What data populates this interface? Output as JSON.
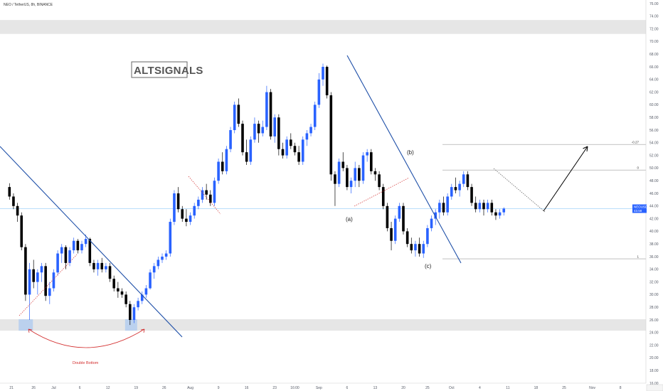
{
  "header": {
    "symbol_line": "NEO / TetherUS, 8h, BINANCE"
  },
  "watermark": "ALTSIGNALS",
  "chart_data": {
    "type": "candlestick",
    "symbol": "NEO / TetherUS",
    "timeframe": "8h",
    "exchange": "BINANCE",
    "ylim": [
      15,
      77
    ],
    "y_ticks": [
      "16.00",
      "18.00",
      "20.00",
      "22.00",
      "24.00",
      "26.00",
      "28.00",
      "30.00",
      "32.00",
      "34.00",
      "36.00",
      "38.00",
      "40.00",
      "42.00",
      "44.00",
      "46.00",
      "48.00",
      "50.00",
      "52.00",
      "54.00",
      "56.00",
      "58.00",
      "60.00",
      "62.00",
      "64.00",
      "66.00",
      "68.00",
      "70.00",
      "72.00",
      "74.00",
      "76.00"
    ],
    "x_ticks": [
      "21",
      "26",
      "Jul",
      "6",
      "12",
      "19",
      "26",
      "Aug",
      "9",
      "16",
      "23",
      "16:00",
      "Sep",
      "6",
      "13",
      "20",
      "25",
      "Oct",
      "4",
      "11",
      "18",
      "25",
      "Nov",
      "8"
    ],
    "x_tick_positions": [
      0.5,
      6,
      11,
      17.5,
      24.5,
      31.5,
      38.5,
      45,
      52,
      59,
      66,
      71,
      77,
      84,
      91,
      98,
      104,
      110,
      117,
      124,
      131,
      138,
      145,
      152
    ],
    "x_range": [
      -2,
      158
    ],
    "ohlc": [
      [
        0,
        47.0,
        47.6,
        45.0,
        45.5
      ],
      [
        1,
        45.5,
        46.0,
        43.5,
        44.0
      ],
      [
        2,
        44.0,
        44.5,
        41.5,
        42.5
      ],
      [
        3,
        42.5,
        43.0,
        37.0,
        37.5
      ],
      [
        4,
        37.5,
        38.0,
        29.0,
        30.0
      ],
      [
        5,
        30.0,
        35.0,
        26.0,
        34.0
      ],
      [
        6,
        34.0,
        35.5,
        31.0,
        32.0
      ],
      [
        7,
        32.0,
        34.0,
        30.0,
        33.5
      ],
      [
        8,
        33.5,
        35.0,
        32.0,
        34.5
      ],
      [
        9,
        34.5,
        35.0,
        29.0,
        29.8
      ],
      [
        10,
        29.8,
        32.0,
        28.5,
        31.0
      ],
      [
        11,
        31.0,
        34.0,
        30.5,
        33.5
      ],
      [
        12,
        33.5,
        37.0,
        33.0,
        36.5
      ],
      [
        13,
        36.5,
        38.0,
        35.0,
        37.5
      ],
      [
        14,
        37.5,
        37.8,
        34.0,
        35.0
      ],
      [
        15,
        35.0,
        37.5,
        34.5,
        37.0
      ],
      [
        16,
        37.0,
        39.0,
        36.5,
        38.5
      ],
      [
        17,
        38.5,
        38.8,
        36.5,
        37.0
      ],
      [
        18,
        37.0,
        38.5,
        36.5,
        38.0
      ],
      [
        19,
        38.0,
        39.5,
        37.5,
        38.8
      ],
      [
        20,
        38.8,
        39.0,
        34.5,
        35.0
      ],
      [
        21,
        35.0,
        35.5,
        33.5,
        34.0
      ],
      [
        22,
        34.0,
        35.5,
        33.0,
        35.0
      ],
      [
        23,
        35.0,
        35.8,
        33.5,
        34.0
      ],
      [
        24,
        34.0,
        35.0,
        33.5,
        34.5
      ],
      [
        25,
        34.5,
        35.0,
        32.0,
        32.5
      ],
      [
        26,
        32.5,
        33.0,
        30.5,
        31.0
      ],
      [
        27,
        31.0,
        32.0,
        29.5,
        30.5
      ],
      [
        28,
        30.5,
        31.0,
        29.5,
        30.0
      ],
      [
        29,
        30.0,
        30.5,
        28.0,
        28.5
      ],
      [
        30,
        28.5,
        29.0,
        25.2,
        26.0
      ],
      [
        31,
        26.0,
        28.5,
        25.5,
        28.0
      ],
      [
        32,
        28.0,
        29.5,
        27.5,
        29.0
      ],
      [
        33,
        29.0,
        30.5,
        28.5,
        30.0
      ],
      [
        34,
        30.0,
        31.5,
        29.5,
        31.0
      ],
      [
        35,
        31.0,
        34.0,
        30.8,
        33.5
      ],
      [
        36,
        33.5,
        35.0,
        32.5,
        34.5
      ],
      [
        37,
        34.5,
        36.0,
        34.0,
        35.5
      ],
      [
        38,
        35.5,
        36.5,
        35.0,
        36.0
      ],
      [
        39,
        36.0,
        37.0,
        35.5,
        36.5
      ],
      [
        40,
        36.5,
        42.0,
        36.0,
        41.5
      ],
      [
        41,
        41.5,
        46.5,
        41.0,
        46.0
      ],
      [
        42,
        46.0,
        47.0,
        43.0,
        43.5
      ],
      [
        43,
        43.5,
        44.0,
        41.5,
        42.0
      ],
      [
        44,
        42.0,
        43.5,
        40.8,
        41.5
      ],
      [
        45,
        41.5,
        43.0,
        41.0,
        42.5
      ],
      [
        46,
        42.5,
        44.5,
        42.0,
        44.0
      ],
      [
        47,
        44.0,
        45.5,
        43.5,
        45.0
      ],
      [
        48,
        45.0,
        47.0,
        44.5,
        46.5
      ],
      [
        49,
        46.5,
        47.5,
        45.0,
        45.8
      ],
      [
        50,
        45.8,
        46.5,
        44.0,
        44.5
      ],
      [
        51,
        44.5,
        48.5,
        44.0,
        48.0
      ],
      [
        52,
        48.0,
        51.5,
        47.5,
        51.0
      ],
      [
        53,
        51.0,
        52.5,
        49.0,
        49.5
      ],
      [
        54,
        49.5,
        53.5,
        49.0,
        53.0
      ],
      [
        55,
        53.0,
        56.5,
        52.5,
        56.0
      ],
      [
        56,
        56.0,
        60.5,
        55.5,
        60.0
      ],
      [
        57,
        60.0,
        61.0,
        56.5,
        57.0
      ],
      [
        58,
        57.0,
        57.5,
        52.0,
        52.5
      ],
      [
        59,
        52.5,
        54.5,
        50.5,
        51.0
      ],
      [
        60,
        51.0,
        55.0,
        50.5,
        54.5
      ],
      [
        61,
        54.5,
        58.0,
        54.0,
        57.0
      ],
      [
        62,
        57.0,
        57.5,
        54.0,
        55.5
      ],
      [
        63,
        55.5,
        57.5,
        55.0,
        56.5
      ],
      [
        64,
        56.5,
        63.0,
        56.0,
        62.0
      ],
      [
        65,
        62.0,
        62.5,
        54.5,
        55.0
      ],
      [
        66,
        55.0,
        58.5,
        54.0,
        58.0
      ],
      [
        67,
        58.0,
        58.5,
        52.0,
        53.0
      ],
      [
        68,
        53.0,
        54.0,
        51.5,
        52.0
      ],
      [
        69,
        52.0,
        55.0,
        51.5,
        54.5
      ],
      [
        70,
        54.5,
        55.5,
        53.0,
        53.5
      ],
      [
        71,
        53.5,
        54.0,
        52.0,
        52.5
      ],
      [
        72,
        52.5,
        53.5,
        50.5,
        51.0
      ],
      [
        73,
        51.0,
        55.0,
        50.5,
        54.5
      ],
      [
        74,
        54.5,
        56.0,
        53.5,
        55.5
      ],
      [
        75,
        55.5,
        57.0,
        55.0,
        56.5
      ],
      [
        76,
        56.5,
        60.5,
        56.0,
        60.0
      ],
      [
        77,
        60.0,
        65.0,
        59.5,
        64.0
      ],
      [
        78,
        64.0,
        66.5,
        63.0,
        66.0
      ],
      [
        79,
        66.0,
        66.2,
        61.0,
        61.5
      ],
      [
        80,
        61.5,
        62.0,
        48.0,
        49.0
      ],
      [
        81,
        49.0,
        49.5,
        44.0,
        47.5
      ],
      [
        82,
        47.5,
        51.5,
        47.0,
        51.0
      ],
      [
        83,
        51.0,
        52.5,
        49.5,
        50.0
      ],
      [
        84,
        50.0,
        50.5,
        46.5,
        47.0
      ],
      [
        85,
        47.0,
        48.5,
        46.0,
        48.0
      ],
      [
        86,
        48.0,
        51.0,
        47.0,
        50.0
      ],
      [
        87,
        50.0,
        50.5,
        47.0,
        48.0
      ],
      [
        88,
        48.0,
        52.5,
        47.5,
        52.0
      ],
      [
        89,
        52.0,
        53.0,
        51.0,
        52.5
      ],
      [
        90,
        52.5,
        53.0,
        49.0,
        49.5
      ],
      [
        91,
        49.5,
        50.0,
        48.0,
        49.0
      ],
      [
        92,
        49.0,
        49.5,
        46.5,
        47.0
      ],
      [
        93,
        47.0,
        47.5,
        43.5,
        44.0
      ],
      [
        94,
        44.0,
        44.5,
        40.0,
        40.5
      ],
      [
        95,
        40.5,
        41.5,
        37.0,
        38.5
      ],
      [
        96,
        38.5,
        42.5,
        38.0,
        42.0
      ],
      [
        97,
        42.0,
        44.5,
        41.5,
        44.0
      ],
      [
        98,
        44.0,
        44.5,
        39.5,
        40.0
      ],
      [
        99,
        40.0,
        40.5,
        37.5,
        38.0
      ],
      [
        100,
        38.0,
        39.0,
        36.5,
        37.0
      ],
      [
        101,
        37.0,
        38.5,
        36.0,
        38.0
      ],
      [
        102,
        38.0,
        39.0,
        36.0,
        36.5
      ],
      [
        103,
        36.5,
        38.5,
        35.8,
        38.0
      ],
      [
        104,
        38.0,
        41.0,
        37.5,
        40.5
      ],
      [
        105,
        40.5,
        42.5,
        40.0,
        42.0
      ],
      [
        106,
        42.0,
        43.5,
        41.0,
        43.0
      ],
      [
        107,
        43.0,
        45.0,
        42.0,
        44.5
      ],
      [
        108,
        44.5,
        45.5,
        42.5,
        43.0
      ],
      [
        109,
        43.0,
        46.0,
        42.5,
        45.5
      ],
      [
        110,
        45.5,
        47.5,
        45.0,
        47.0
      ],
      [
        111,
        47.0,
        48.5,
        46.0,
        46.5
      ],
      [
        112,
        46.5,
        48.0,
        45.5,
        47.5
      ],
      [
        113,
        47.5,
        49.5,
        47.0,
        49.0
      ],
      [
        114,
        49.0,
        49.5,
        46.5,
        47.0
      ],
      [
        115,
        47.0,
        47.5,
        44.0,
        44.5
      ],
      [
        116,
        44.5,
        45.5,
        43.0,
        43.5
      ],
      [
        117,
        43.5,
        45.0,
        43.0,
        44.5
      ],
      [
        118,
        44.5,
        45.0,
        42.5,
        43.5
      ],
      [
        119,
        43.5,
        45.0,
        43.0,
        44.5
      ],
      [
        120,
        44.5,
        45.0,
        42.5,
        43.0
      ],
      [
        121,
        43.0,
        43.5,
        41.8,
        42.5
      ],
      [
        122,
        42.5,
        43.5,
        42.0,
        43.0
      ],
      [
        123,
        43.0,
        43.8,
        42.5,
        43.6
      ]
    ],
    "last_price": {
      "symbol_tag": "NEOUSDT",
      "value": "43.58",
      "timer": "01:58:27"
    },
    "fib_levels": [
      {
        "label": "-0.27",
        "price": "53.73",
        "y": 53.73
      },
      {
        "label": "0",
        "price": "49.69",
        "y": 49.69
      },
      {
        "label": "1",
        "price": "35.66",
        "y": 35.66
      }
    ],
    "zones": [
      {
        "y_low": 71.2,
        "y_high": 73.4
      },
      {
        "y_low": 24.3,
        "y_high": 26.1
      }
    ],
    "annotations": {
      "wave_a": "(a)",
      "wave_b": "(b)",
      "wave_c": "(c)",
      "double_bottom": "Double Bottom"
    },
    "colors": {
      "up": "#2962ff",
      "down": "#000000",
      "trendline": "#1e4fa8",
      "zone": "#e6e6e6",
      "highlight": "#b3cdef",
      "curve": "#d32f2f",
      "last_price_line": "#90caf9",
      "last_price_bg": "#2962ff"
    }
  }
}
